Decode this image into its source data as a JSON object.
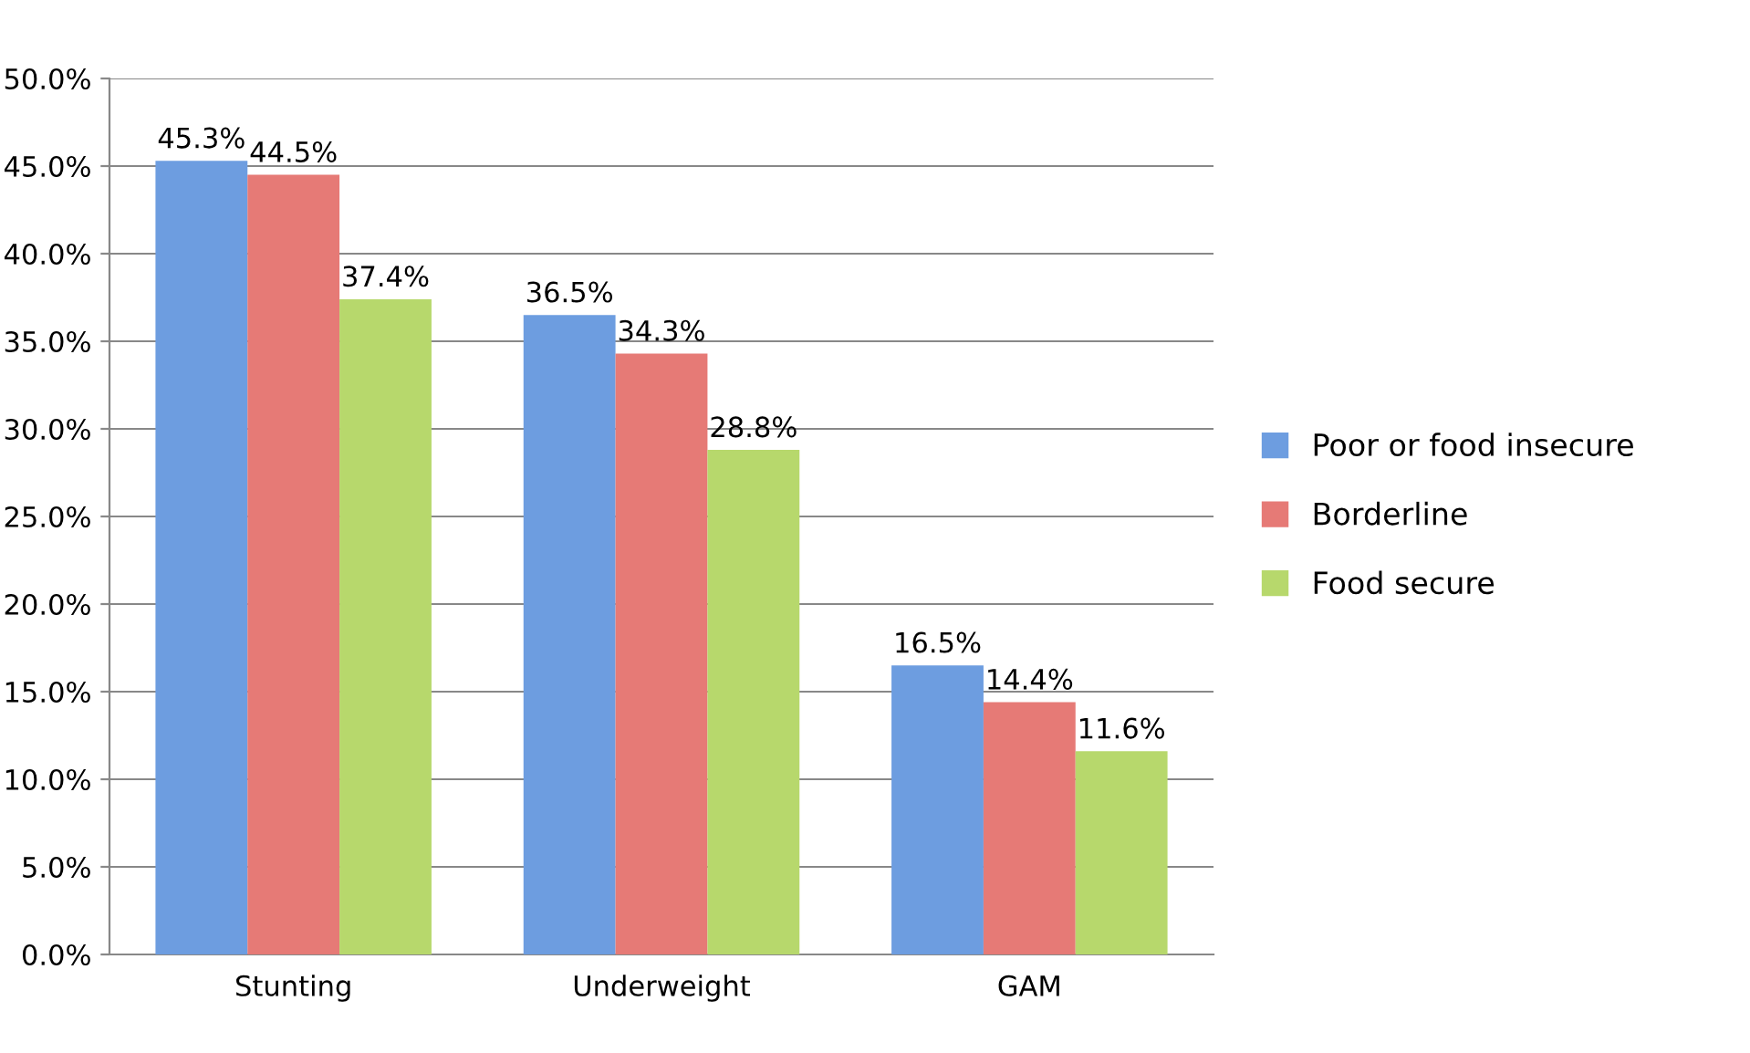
{
  "chart_data": {
    "type": "bar",
    "categories": [
      "Stunting",
      "Underweight",
      "GAM"
    ],
    "series": [
      {
        "name": "Poor or food insecure",
        "color": "#6d9de0",
        "values": [
          45.3,
          36.5,
          16.5
        ],
        "value_labels": [
          "45.3%",
          "36.5%",
          "16.5%"
        ]
      },
      {
        "name": "Borderline",
        "color": "#e67a76",
        "values": [
          44.5,
          34.3,
          14.4
        ],
        "value_labels": [
          "44.5%",
          "34.3%",
          "14.4%"
        ]
      },
      {
        "name": "Food secure",
        "color": "#b7d86c",
        "values": [
          37.4,
          28.8,
          11.6
        ],
        "value_labels": [
          "37.4%",
          "28.8%",
          "11.6%"
        ]
      }
    ],
    "ylim": [
      0,
      50
    ],
    "yticks": [
      {
        "value": 0,
        "label": "0.0%"
      },
      {
        "value": 5,
        "label": "5.0%"
      },
      {
        "value": 10,
        "label": "10.0%"
      },
      {
        "value": 15,
        "label": "15.0%"
      },
      {
        "value": 20,
        "label": "20.0%"
      },
      {
        "value": 25,
        "label": "25.0%"
      },
      {
        "value": 30,
        "label": "30.0%"
      },
      {
        "value": 35,
        "label": "35.0%"
      },
      {
        "value": 40,
        "label": "40.0%"
      },
      {
        "value": 45,
        "label": "45.0%"
      },
      {
        "value": 50,
        "label": "50.0%"
      }
    ],
    "grid": "y",
    "legend": "right"
  }
}
